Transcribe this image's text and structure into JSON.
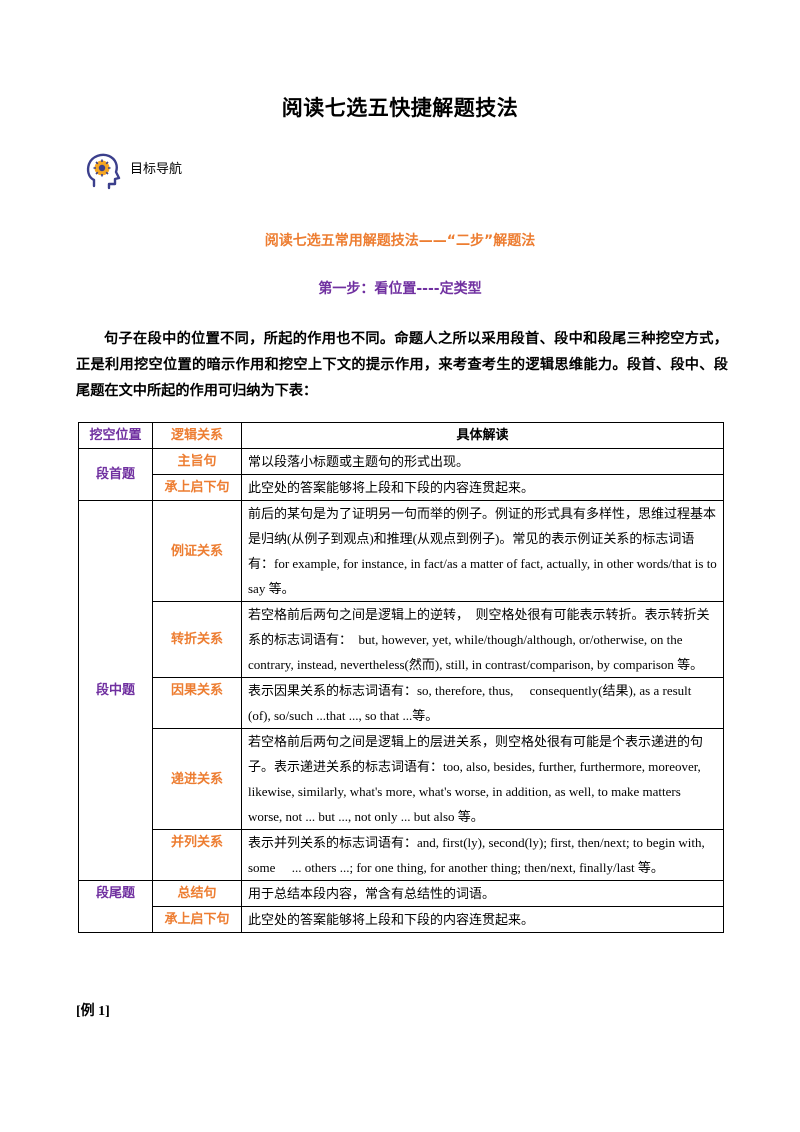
{
  "title": "阅读七选五快捷解题技法",
  "nav": {
    "icon": "brain-head-icon",
    "label": "目标导航"
  },
  "subtitle": "阅读七选五常用解题技法——“二步”解题法",
  "step1": "第一步：看位置----定类型",
  "intro": "句子在段中的位置不同，所起的作用也不同。命题人之所以采用段首、段中和段尾三种挖空方式，正是利用挖空位置的暗示作用和挖空上下文的提示作用，来考查考生的逻辑思维能力。段首、段中、段尾题在文中所起的作用可归纳为下表：",
  "colors": {
    "purple": "#7030A0",
    "orange": "#ED7D31"
  },
  "table": {
    "headers": {
      "position": "挖空位置",
      "relation": "逻辑关系",
      "detail": "具体解读"
    },
    "groups": [
      {
        "position": "段首题",
        "rows": [
          {
            "relation": "主旨句",
            "detail": "常以段落小标题或主题句的形式出现。"
          },
          {
            "relation": "承上启下句",
            "detail": "此空处的答案能够将上段和下段的内容连贯起来。"
          }
        ]
      },
      {
        "position": "段中题",
        "rows": [
          {
            "relation": "例证关系",
            "detail": "前后的某句是为了证明另一句而举的例子。例证的形式具有多样性，思维过程基本是归纳(从例子到观点)和推理(从观点到例子)。常见的表示例证关系的标志词语有：for example, for instance, in fact/as a matter of fact, actually, in other words/that is to say 等。"
          },
          {
            "relation": "转折关系",
            "detail": "若空格前后两句之间是逻辑上的逆转，　则空格处很有可能表示转折。表示转折关系的标志词语有：　but, however, yet, while/though/although, or/otherwise, on the contrary, instead, nevertheless(然而), still, in contrast/comparison, by comparison 等。"
          },
          {
            "relation": "因果关系",
            "detail": "表示因果关系的标志词语有：so, therefore, thus,　 consequently(结果), as a result (of), so/such ...that ..., so that ...等。"
          },
          {
            "relation": "递进关系",
            "detail": "若空格前后两句之间是逻辑上的层进关系，则空格处很有可能是个表示递进的句子。表示递进关系的标志词语有：too, also, besides, further, furthermore, moreover, likewise, similarly, what's more, what's worse, in addition, as well, to make matters worse, not ... but ..., not only ... but also 等。"
          },
          {
            "relation": "并列关系",
            "detail": "表示并列关系的标志词语有：and, first(ly), second(ly); first, then/next; to begin with, some　 ... others ...; for one thing, for another thing; then/next, finally/last 等。"
          }
        ]
      },
      {
        "position": "段尾题",
        "rows": [
          {
            "relation": "总结句",
            "detail": "用于总结本段内容，常含有总结性的词语。"
          },
          {
            "relation": "承上启下句",
            "detail": "此空处的答案能够将上段和下段的内容连贯起来。"
          }
        ]
      }
    ]
  },
  "example_label": "[例 1]"
}
